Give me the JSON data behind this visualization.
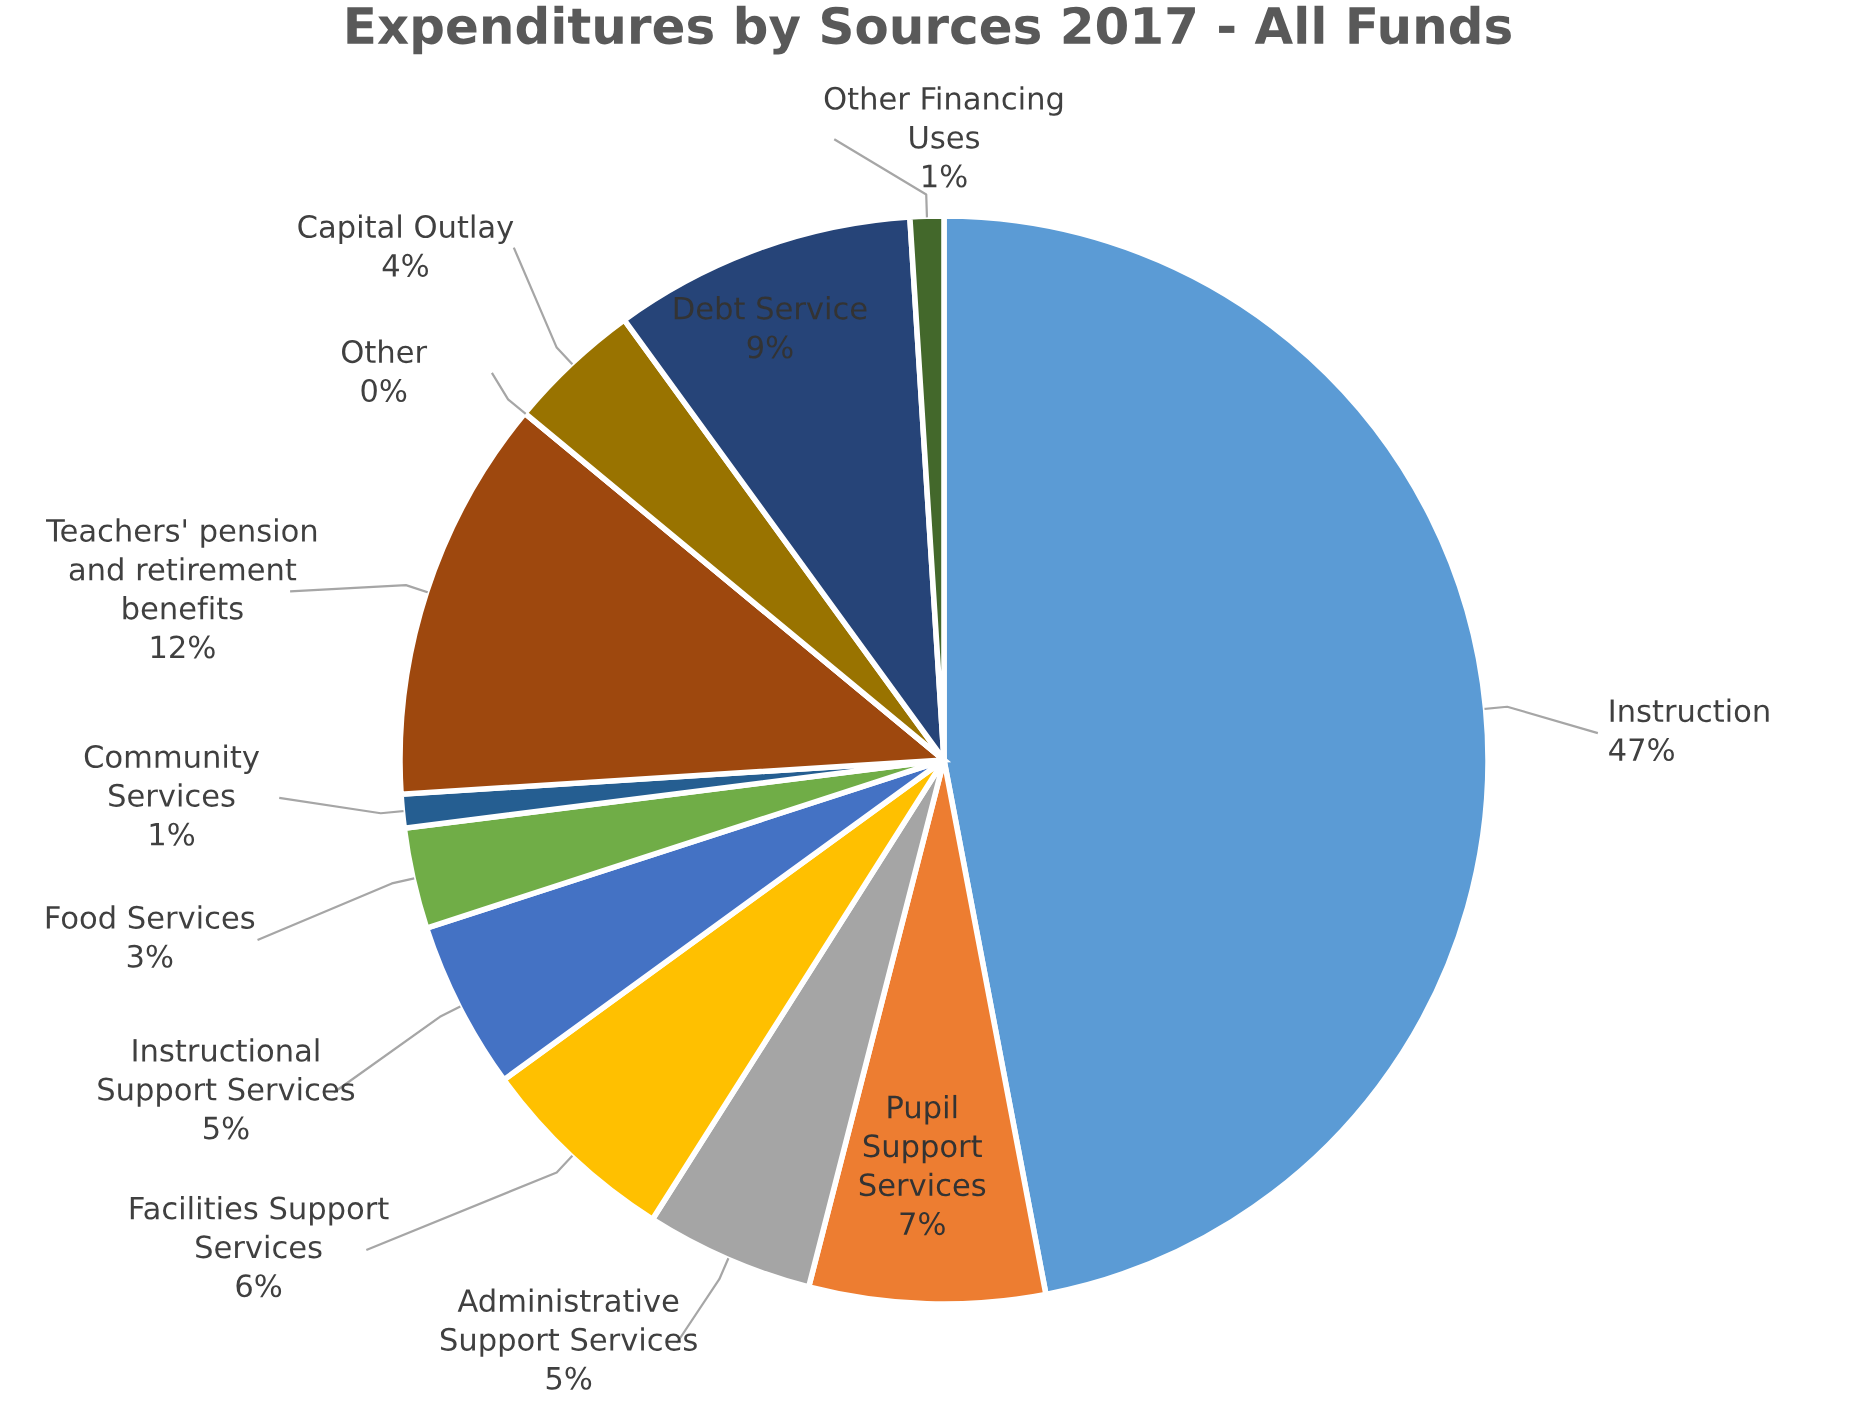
{
  "chart_data": {
    "type": "pie",
    "title": "Expenditures by Sources 2017 - All Funds",
    "categories": [
      "Instruction",
      "Pupil\nSupport\nServices",
      "Administrative\nSupport Services",
      "Facilities Support\nServices",
      "Instructional\nSupport Services",
      "Food Services",
      "Community\nServices",
      "Teachers' pension\nand retirement\nbenefits",
      "Other",
      "Capital Outlay",
      "Debt Service",
      "Other Financing\nUses"
    ],
    "values": [
      47,
      7,
      5,
      6,
      5,
      3,
      1,
      12,
      0,
      4,
      9,
      1
    ],
    "value_labels": [
      "47%",
      "7%",
      "5%",
      "6%",
      "5%",
      "3%",
      "1%",
      "12%",
      "0%",
      "4%",
      "9%",
      "1%"
    ],
    "colors": [
      "#5b9bd5",
      "#ed7d31",
      "#a5a5a5",
      "#ffc000",
      "#4472c4",
      "#70ad47",
      "#255e91",
      "#9e480e",
      "#636363",
      "#997300",
      "#264478",
      "#43682b"
    ]
  }
}
